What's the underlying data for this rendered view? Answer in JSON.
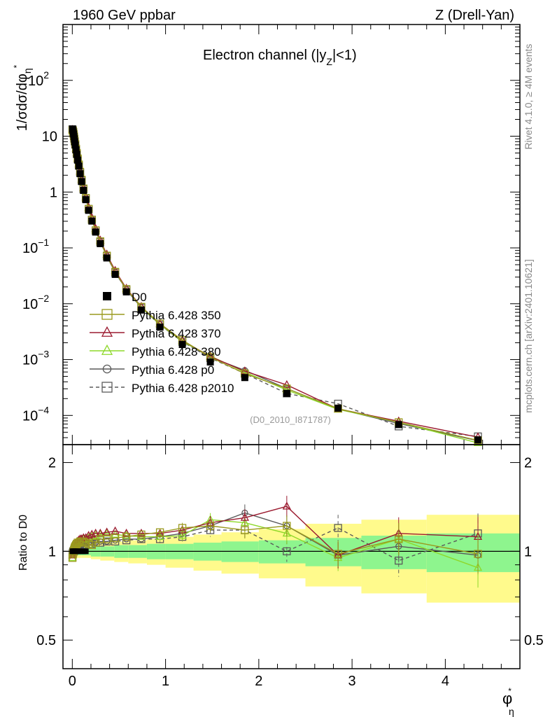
{
  "header": {
    "left": "1960 GeV ppbar",
    "right": "Z (Drell-Yan)",
    "subtitle": "Electron channel (|y",
    "subtitle_sub": "Z",
    "subtitle_tail": "|<1)",
    "side_rivet": "Rivet 4.1.0, ≥ 4M events",
    "side_mcplots": "mcplots.cern.ch [arXiv:2401.10621]",
    "analysis_id": "(D0_2010_I871787)"
  },
  "chart_data": [
    {
      "type": "scatter",
      "name": "main-panel",
      "yscale": "log",
      "ylim": [
        3e-05,
        1000
      ],
      "xlim": [
        -0.1,
        4.8
      ],
      "ylabel": "1/σdσ/dφ",
      "ylabel_sub": "η",
      "ylabel_sup": "*",
      "ytick_labels": [
        {
          "value": 100,
          "base": "10",
          "exp": "2"
        },
        {
          "value": 10,
          "base": "10",
          "exp": ""
        },
        {
          "value": 1,
          "base": "1",
          "exp": ""
        },
        {
          "value": 0.1,
          "base": "10",
          "exp": "−1"
        },
        {
          "value": 0.01,
          "base": "10",
          "exp": "−2"
        },
        {
          "value": 0.001,
          "base": "10",
          "exp": "−3"
        },
        {
          "value": 0.0001,
          "base": "10",
          "exp": "−4"
        }
      ],
      "x": [
        0.002,
        0.006,
        0.01,
        0.014,
        0.018,
        0.022,
        0.026,
        0.032,
        0.04,
        0.048,
        0.058,
        0.07,
        0.084,
        0.1,
        0.12,
        0.145,
        0.175,
        0.21,
        0.25,
        0.3,
        0.37,
        0.46,
        0.58,
        0.74,
        0.94,
        1.18,
        1.48,
        1.85,
        2.3,
        2.85,
        3.5,
        4.35
      ],
      "series": [
        {
          "name": "D0",
          "marker": "square-filled",
          "color": "#000000",
          "line": "none",
          "values": [
            13.5,
            12.8,
            11.9,
            10.9,
            9.9,
            8.9,
            7.95,
            6.95,
            5.7,
            4.72,
            3.73,
            2.91,
            2.13,
            1.54,
            1.07,
            0.73,
            0.47,
            0.302,
            0.192,
            0.119,
            0.066,
            0.0335,
            0.0163,
            0.0077,
            0.0038,
            0.00186,
            0.000905,
            0.000476,
            0.000248,
            0.000135,
            6.85e-05,
            3.65e-05
          ]
        },
        {
          "name": "Pythia 6.428 350",
          "marker": "square-open",
          "color": "#9a9a1e",
          "line": "solid",
          "ratio": [
            0.95,
            0.98,
            0.99,
            1.0,
            1.01,
            1.02,
            1.03,
            1.04,
            1.05,
            1.06,
            1.07,
            1.07,
            1.08,
            1.08,
            1.08,
            1.07,
            1.06,
            1.05,
            1.07,
            1.1,
            1.1,
            1.11,
            1.12,
            1.14,
            1.16,
            1.2,
            1.22,
            1.18,
            1.22,
            0.98,
            1.1,
            0.98
          ]
        },
        {
          "name": "Pythia 6.428 370",
          "marker": "triangle-open",
          "color": "#9b1b30",
          "line": "solid",
          "ratio": [
            0.97,
            0.98,
            0.99,
            1.01,
            1.02,
            1.03,
            1.05,
            1.06,
            1.06,
            1.07,
            1.08,
            1.09,
            1.1,
            1.1,
            1.11,
            1.11,
            1.13,
            1.14,
            1.15,
            1.15,
            1.16,
            1.17,
            1.15,
            1.15,
            1.15,
            1.18,
            1.25,
            1.3,
            1.42,
            0.97,
            1.15,
            1.12
          ]
        },
        {
          "name": "Pythia 6.428 380",
          "marker": "triangle-open",
          "color": "#8ed82a",
          "line": "solid",
          "ratio": [
            0.95,
            0.97,
            0.99,
            1.0,
            1.01,
            1.02,
            1.03,
            1.04,
            1.05,
            1.06,
            1.07,
            1.08,
            1.09,
            1.1,
            1.1,
            1.1,
            1.11,
            1.12,
            1.13,
            1.14,
            1.15,
            1.14,
            1.13,
            1.12,
            1.12,
            1.13,
            1.28,
            1.25,
            1.15,
            0.95,
            1.1,
            0.88
          ]
        },
        {
          "name": "Pythia 6.428 p0",
          "marker": "circle-open",
          "color": "#5a5a5a",
          "line": "solid",
          "ratio": [
            0.98,
            0.99,
            1.0,
            1.0,
            1.01,
            1.01,
            1.02,
            1.02,
            1.03,
            1.03,
            1.03,
            1.04,
            1.05,
            1.05,
            1.06,
            1.07,
            1.07,
            1.07,
            1.07,
            1.08,
            1.08,
            1.09,
            1.1,
            1.1,
            1.12,
            1.15,
            1.22,
            1.35,
            1.22,
            0.97,
            1.04,
            0.97
          ]
        },
        {
          "name": "Pythia 6.428 p2010",
          "marker": "square-open",
          "color": "#5a5a5a",
          "line": "dashed",
          "ratio": [
            0.98,
            0.99,
            1.0,
            1.0,
            1.0,
            1.01,
            1.01,
            1.02,
            1.02,
            1.02,
            1.03,
            1.03,
            1.04,
            1.04,
            1.05,
            1.05,
            1.06,
            1.06,
            1.07,
            1.07,
            1.08,
            1.08,
            1.09,
            1.1,
            1.1,
            1.12,
            1.18,
            1.18,
            1.0,
            1.2,
            0.93,
            1.15
          ]
        }
      ],
      "watermark": "(D0_2010_I871787)"
    },
    {
      "type": "scatter",
      "name": "ratio-panel",
      "yscale": "log",
      "ylim": [
        0.4,
        2.3
      ],
      "xlim": [
        -0.1,
        4.8
      ],
      "ylabel": "Ratio to D0",
      "xlabel": "φ",
      "xlabel_sub": "η",
      "xlabel_sup": "*",
      "xtick_labels": [
        "0",
        "1",
        "2",
        "3",
        "4"
      ],
      "ytick_labels": [
        "0.5",
        "1",
        "2"
      ],
      "reference_line": 1,
      "band_edges": [
        0.0,
        0.1,
        0.2,
        0.3,
        0.45,
        0.6,
        0.8,
        1.0,
        1.3,
        1.6,
        2.0,
        2.5,
        3.1,
        3.8,
        4.8
      ],
      "band_green": [
        0.03,
        0.03,
        0.04,
        0.04,
        0.05,
        0.05,
        0.06,
        0.06,
        0.07,
        0.08,
        0.09,
        0.11,
        0.13,
        0.15
      ],
      "band_yellow": [
        0.05,
        0.05,
        0.06,
        0.07,
        0.08,
        0.09,
        0.1,
        0.12,
        0.14,
        0.16,
        0.19,
        0.24,
        0.28,
        0.33
      ]
    }
  ]
}
